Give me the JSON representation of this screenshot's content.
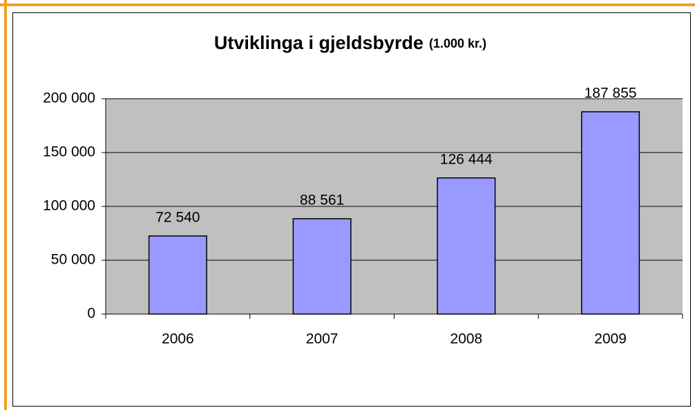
{
  "chart_data": {
    "type": "bar",
    "title": "Utviklinga i gjeldsbyrde",
    "subtitle": "(1.000 kr.)",
    "categories": [
      "2006",
      "2007",
      "2008",
      "2009"
    ],
    "values": [
      72540,
      88561,
      126444,
      187855
    ],
    "value_labels": [
      "72 540",
      "88 561",
      "126 444",
      "187 855"
    ],
    "color": "#9999ff",
    "ylim": [
      0,
      200000
    ],
    "yticks": [
      0,
      {
        "value": 50000,
        "label": "50 000"
      },
      {
        "value": 100000,
        "label": "100 000"
      },
      {
        "value": 150000,
        "label": "150 000"
      },
      {
        "value": 200000,
        "label": "200 000"
      }
    ],
    "grid": true
  }
}
